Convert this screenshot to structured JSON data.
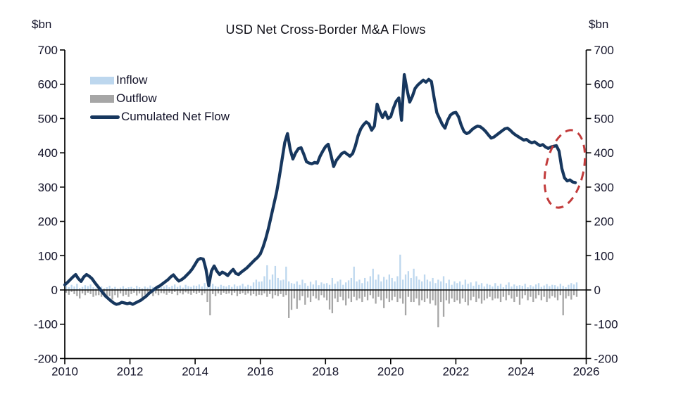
{
  "figure": {
    "title": "USD Net Cross-Border M&A Flows",
    "unit_left": "$bn",
    "unit_right": "$bn",
    "legend": {
      "inflow": "Inflow",
      "outflow": "Outflow",
      "cumulated": "Cumulated Net Flow"
    }
  },
  "colors": {
    "inflow_bar": "#BDD7EE",
    "outflow_bar": "#A6A6A6",
    "cumulated_line": "#17375E",
    "annotation_red": "#C23B3B",
    "axis": "#000000",
    "text": "#14142a"
  },
  "chart_data": {
    "type": "composite_bar_line",
    "title": "USD Net Cross-Border M&A Flows",
    "ylabel_left": "$bn",
    "ylabel_right": "$bn",
    "ylim": [
      -200,
      700
    ],
    "xlim": [
      2010,
      2026
    ],
    "y_ticks": [
      700,
      600,
      500,
      400,
      300,
      200,
      100,
      0,
      -100,
      -200
    ],
    "x_ticks": [
      2010,
      2012,
      2014,
      2016,
      2018,
      2020,
      2022,
      2024,
      2026
    ],
    "grid": false,
    "legend_position": "upper-left-inside",
    "frequency": "monthly",
    "start_year": 2010,
    "series": [
      {
        "name": "Inflow",
        "type": "bar",
        "color": "#BDD7EE",
        "values": [
          12,
          8,
          15,
          10,
          18,
          6,
          9,
          14,
          11,
          16,
          8,
          5,
          7,
          10,
          5,
          8,
          12,
          6,
          9,
          4,
          7,
          11,
          6,
          8,
          9,
          6,
          12,
          8,
          5,
          10,
          7,
          13,
          9,
          6,
          11,
          8,
          10,
          14,
          8,
          12,
          16,
          9,
          13,
          7,
          15,
          11,
          9,
          13,
          12,
          16,
          10,
          20,
          8,
          14,
          18,
          11,
          9,
          15,
          12,
          10,
          14,
          9,
          16,
          11,
          13,
          18,
          10,
          15,
          12,
          22,
          30,
          24,
          25,
          40,
          72,
          30,
          45,
          70,
          35,
          28,
          30,
          68,
          25,
          20,
          18,
          25,
          15,
          30,
          20,
          12,
          24,
          16,
          28,
          14,
          22,
          18,
          20,
          15,
          35,
          18,
          25,
          30,
          15,
          22,
          28,
          35,
          68,
          25,
          30,
          20,
          35,
          25,
          40,
          62,
          30,
          45,
          25,
          38,
          30,
          45,
          35,
          25,
          40,
          103,
          30,
          45,
          55,
          35,
          62,
          40,
          30,
          25,
          45,
          30,
          25,
          35,
          20,
          30,
          25,
          40,
          20,
          30,
          15,
          25,
          20,
          25,
          15,
          30,
          18,
          22,
          12,
          25,
          15,
          20,
          10,
          18,
          15,
          10,
          20,
          12,
          18,
          8,
          15,
          22,
          10,
          16,
          12,
          14,
          12,
          18,
          8,
          14,
          10,
          16,
          20,
          9,
          13,
          17,
          11,
          15,
          14,
          10,
          18,
          12,
          8,
          15,
          20,
          16,
          22
        ]
      },
      {
        "name": "Outflow",
        "type": "bar",
        "color": "#A6A6A6",
        "values": [
          -8,
          -14,
          -6,
          -12,
          -18,
          -25,
          -10,
          -15,
          -8,
          -12,
          -20,
          -16,
          -15,
          -20,
          -12,
          -25,
          -18,
          -28,
          -15,
          -22,
          -10,
          -18,
          -14,
          -20,
          -12,
          -8,
          -16,
          -10,
          -22,
          -14,
          -8,
          -12,
          -18,
          -10,
          -15,
          -9,
          -10,
          -14,
          -8,
          -12,
          -6,
          -15,
          -9,
          -13,
          -7,
          -11,
          -14,
          -8,
          -12,
          -8,
          -15,
          -10,
          -35,
          -74,
          -12,
          -18,
          -10,
          -14,
          -8,
          -12,
          -10,
          -15,
          -8,
          -18,
          -12,
          -9,
          -14,
          -10,
          -16,
          -12,
          -18,
          -14,
          -15,
          -10,
          -20,
          -12,
          -25,
          -15,
          -18,
          -12,
          -20,
          -15,
          -82,
          -58,
          -25,
          -55,
          -30,
          -18,
          -43,
          -22,
          -35,
          -18,
          -25,
          -30,
          -15,
          -22,
          -30,
          -57,
          -68,
          -25,
          -35,
          -20,
          -30,
          -45,
          -25,
          -35,
          -20,
          -30,
          -25,
          -35,
          -20,
          -30,
          -15,
          -25,
          -40,
          -20,
          -30,
          -53,
          -25,
          -35,
          -30,
          -20,
          -35,
          -25,
          -40,
          -74,
          -20,
          -35,
          -35,
          -25,
          -45,
          -30,
          -35,
          -25,
          -40,
          -30,
          -45,
          -109,
          -35,
          -78,
          -30,
          -40,
          -25,
          -35,
          -30,
          -40,
          -25,
          -35,
          -45,
          -30,
          -20,
          -35,
          -25,
          -40,
          -30,
          -25,
          -20,
          -30,
          -25,
          -25,
          -35,
          -20,
          -30,
          -15,
          -25,
          -35,
          -20,
          -43,
          -25,
          -15,
          -30,
          -20,
          -35,
          -25,
          -15,
          -30,
          -20,
          -35,
          -25,
          -18,
          -22,
          -30,
          -15,
          -74,
          -25,
          -18,
          -28,
          -15,
          -20
        ]
      },
      {
        "name": "Cumulated Net Flow",
        "type": "line",
        "color": "#17375E",
        "values": [
          15,
          22,
          30,
          38,
          45,
          33,
          25,
          38,
          45,
          40,
          33,
          22,
          12,
          2,
          -8,
          -18,
          -25,
          -32,
          -38,
          -42,
          -40,
          -36,
          -38,
          -40,
          -38,
          -42,
          -38,
          -34,
          -30,
          -24,
          -18,
          -10,
          -4,
          2,
          8,
          12,
          18,
          24,
          30,
          38,
          44,
          34,
          26,
          30,
          36,
          44,
          52,
          62,
          75,
          88,
          92,
          90,
          60,
          12,
          55,
          70,
          55,
          45,
          52,
          48,
          42,
          52,
          60,
          48,
          45,
          52,
          58,
          64,
          72,
          80,
          88,
          95,
          105,
          125,
          150,
          180,
          215,
          250,
          285,
          330,
          380,
          430,
          456,
          410,
          382,
          400,
          412,
          415,
          396,
          374,
          370,
          368,
          372,
          370,
          390,
          405,
          418,
          425,
          394,
          360,
          378,
          388,
          398,
          402,
          396,
          390,
          398,
          420,
          450,
          470,
          482,
          490,
          484,
          466,
          478,
          542,
          520,
          503,
          519,
          500,
          505,
          530,
          550,
          560,
          495,
          628,
          585,
          548,
          565,
          588,
          598,
          605,
          612,
          606,
          614,
          608,
          560,
          517,
          500,
          483,
          472,
          495,
          510,
          516,
          518,
          505,
          480,
          462,
          456,
          460,
          468,
          474,
          478,
          476,
          470,
          462,
          452,
          443,
          446,
          452,
          458,
          464,
          470,
          472,
          466,
          458,
          452,
          447,
          442,
          437,
          439,
          433,
          429,
          432,
          426,
          421,
          424,
          417,
          413,
          417,
          419,
          421,
          405,
          355,
          327,
          318,
          321,
          315,
          313
        ]
      }
    ],
    "annotation": {
      "type": "dashed_ellipse",
      "color": "#C23B3B",
      "center_year": 2025.34,
      "center_value": 353,
      "rx_years": 0.58,
      "ry_value": 115,
      "rotation_deg": 12
    }
  }
}
